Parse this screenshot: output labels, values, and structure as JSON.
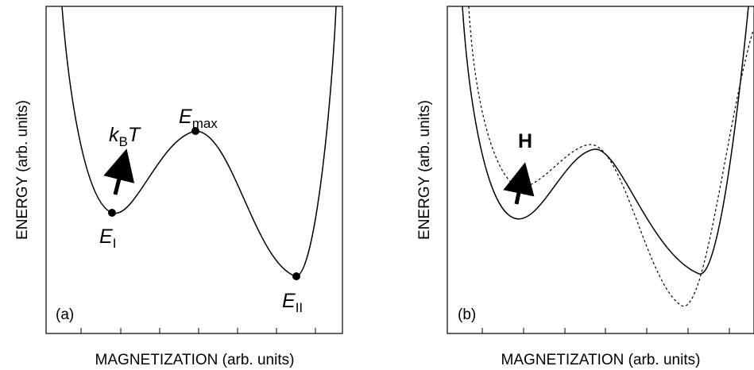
{
  "panels": [
    {
      "id": "a",
      "tag": "(a)",
      "xlabel": "MAGNETIZATION (arb. units)",
      "ylabel": "ENERGY (arb. units)",
      "minimum_1": {
        "letter": "E",
        "sub": "I"
      },
      "maximum": {
        "letter": "E",
        "sub": "max"
      },
      "minimum_2": {
        "letter": "E",
        "sub": "II"
      },
      "thermal": {
        "letter": "k",
        "sub": "B",
        "letter2": "T"
      }
    },
    {
      "id": "b",
      "tag": "(b)",
      "xlabel": "MAGNETIZATION (arb. units)",
      "ylabel": "ENERGY (arb. units)",
      "field_label": "H",
      "legend": ""
    }
  ],
  "style": {
    "line_color": "#000000",
    "background": "#ffffff"
  }
}
